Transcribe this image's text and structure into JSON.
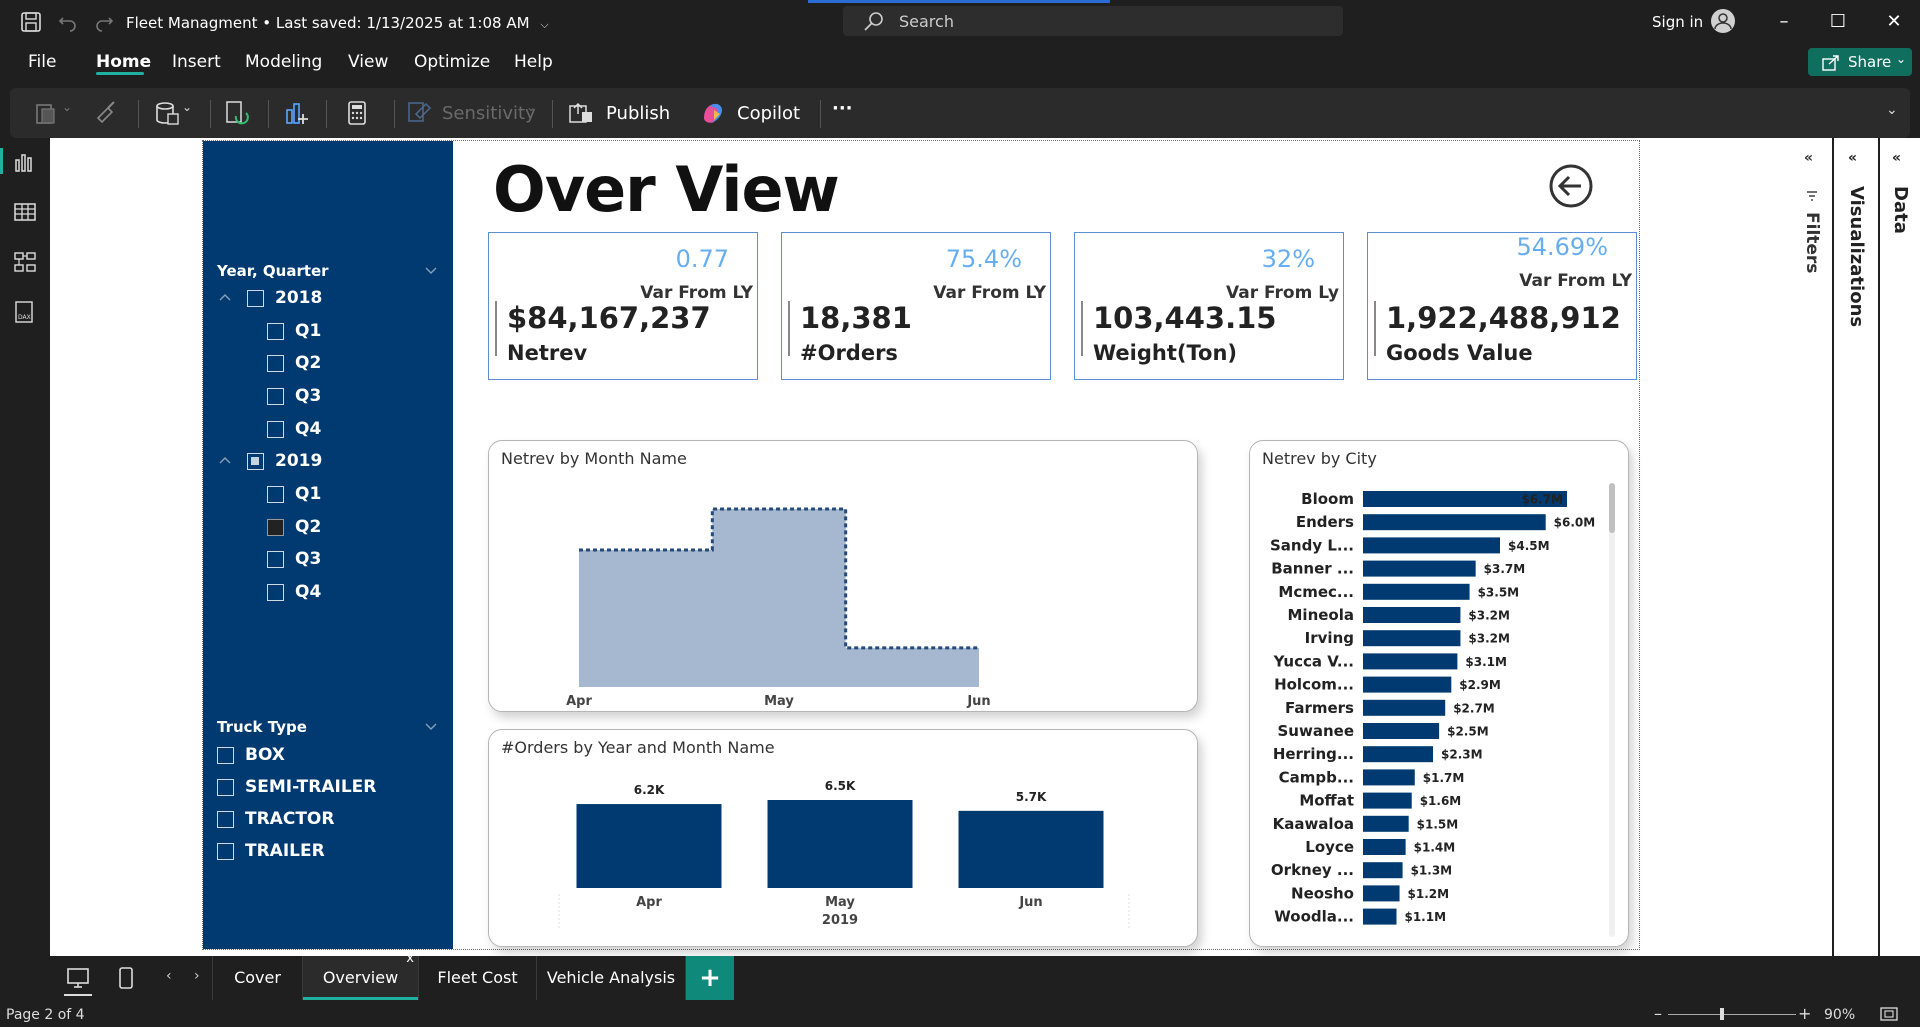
{
  "titlebar": {
    "doc_name": "Fleet Managment",
    "saved": "Last saved: 1/13/2025 at 1:08 AM",
    "search_placeholder": "Search",
    "sign_in": "Sign in"
  },
  "menu": {
    "items": [
      "File",
      "Home",
      "Insert",
      "Modeling",
      "View",
      "Optimize",
      "Help"
    ],
    "active": "Home",
    "share": "Share"
  },
  "ribbon": {
    "sensitivity": "Sensitivity",
    "publish": "Publish",
    "copilot": "Copilot",
    "more": "···"
  },
  "report": {
    "title": "Over View",
    "slicers": {
      "year_quarter": {
        "title": "Year, Quarter",
        "years": [
          {
            "label": "2018",
            "state": "unchecked",
            "quarters": [
              {
                "label": "Q1",
                "state": "unchecked"
              },
              {
                "label": "Q2",
                "state": "unchecked"
              },
              {
                "label": "Q3",
                "state": "unchecked"
              },
              {
                "label": "Q4",
                "state": "unchecked"
              }
            ]
          },
          {
            "label": "2019",
            "state": "partial",
            "quarters": [
              {
                "label": "Q1",
                "state": "unchecked"
              },
              {
                "label": "Q2",
                "state": "checked"
              },
              {
                "label": "Q3",
                "state": "unchecked"
              },
              {
                "label": "Q4",
                "state": "unchecked"
              }
            ]
          }
        ]
      },
      "truck_type": {
        "title": "Truck Type",
        "items": [
          "BOX",
          "SEMI-TRAILER",
          "TRACTOR",
          "TRAILER"
        ]
      }
    },
    "kpis": [
      {
        "var": "0.77",
        "var_label": "Var From LY",
        "value": "$84,167,237",
        "label": "Netrev"
      },
      {
        "var": "75.4%",
        "var_label": "Var From LY",
        "value": "18,381",
        "label": "#Orders"
      },
      {
        "var": "32%",
        "var_label": "Var From Ly",
        "value": "103,443.15",
        "label": "Weight(Ton)"
      },
      {
        "var": "54.69%",
        "var_label": "Var From LY",
        "value": "1,922,488,912",
        "label": "Goods Value"
      }
    ]
  },
  "chart_data": [
    {
      "type": "area",
      "title": "Netrev by Month Name",
      "categories": [
        "Apr",
        "May",
        "Jun"
      ],
      "x_ticks": [
        "Apr",
        "May",
        "Jun"
      ],
      "step": true,
      "relative_values": [
        0.77,
        1.0,
        0.22
      ],
      "color": "#a6b8cf",
      "line_color": "#254a7a"
    },
    {
      "type": "bar",
      "title": "#Orders by Year and Month Name",
      "categories": [
        "Apr",
        "May",
        "Jun"
      ],
      "group_label": "2019",
      "values": [
        6200,
        6500,
        5700
      ],
      "data_labels": [
        "6.2K",
        "6.5K",
        "5.7K"
      ],
      "ylim": [
        0,
        6500
      ],
      "color": "#003a70"
    },
    {
      "type": "bar",
      "orientation": "horizontal",
      "title": "Netrev by City",
      "categories": [
        "Bloom",
        "Enders",
        "Sandy L...",
        "Banner ...",
        "Mcmec...",
        "Mineola",
        "Irving",
        "Yucca V...",
        "Holcom...",
        "Farmers",
        "Suwanee",
        "Herring...",
        "Campb...",
        "Moffat",
        "Kaawaloa",
        "Loyce",
        "Orkney ...",
        "Neosho",
        "Woodla..."
      ],
      "values": [
        6.7,
        6.0,
        4.5,
        3.7,
        3.5,
        3.2,
        3.2,
        3.1,
        2.9,
        2.7,
        2.5,
        2.3,
        1.7,
        1.6,
        1.5,
        1.4,
        1.3,
        1.2,
        1.1
      ],
      "data_labels": [
        "$6.7M",
        "$6.0M",
        "$4.5M",
        "$3.7M",
        "$3.5M",
        "$3.2M",
        "$3.2M",
        "$3.1M",
        "$2.9M",
        "$2.7M",
        "$2.5M",
        "$2.3M",
        "$1.7M",
        "$1.6M",
        "$1.5M",
        "$1.4M",
        "$1.3M",
        "$1.2M",
        "$1.1M"
      ],
      "xlim": [
        0,
        6.7
      ],
      "color": "#003a70"
    }
  ],
  "panels": {
    "filters": "Filters",
    "visualizations": "Visualizations",
    "data": "Data"
  },
  "pages": {
    "tabs": [
      "Cover",
      "Overview",
      "Fleet Cost",
      "Vehicle Analysis"
    ],
    "active": "Overview",
    "close": "x",
    "add": "+"
  },
  "status": {
    "page": "Page 2 of 4",
    "zoom": "90%"
  }
}
